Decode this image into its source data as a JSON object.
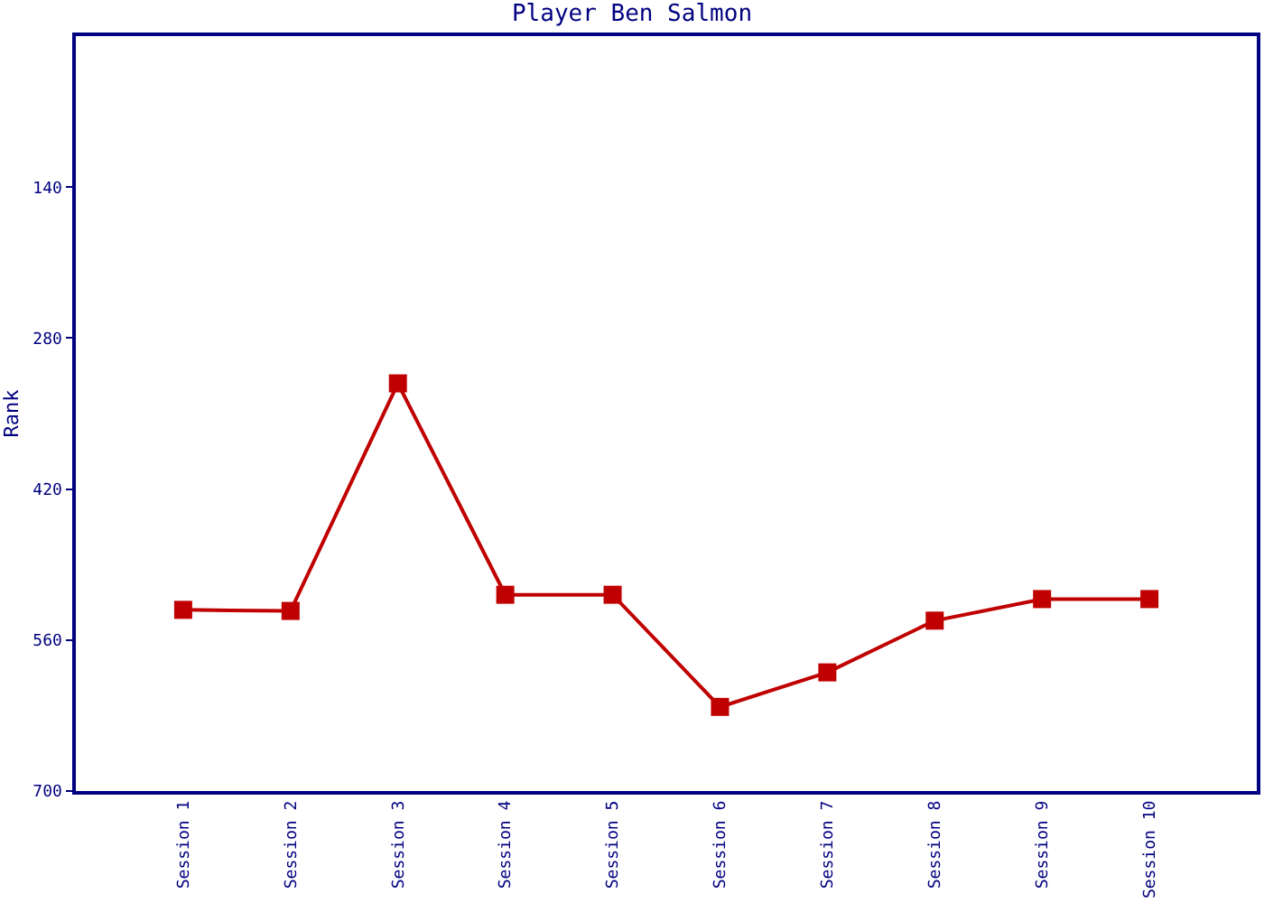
{
  "chart_data": {
    "type": "line",
    "title": "Player Ben Salmon",
    "ylabel": "Rank",
    "categories": [
      "Session 1",
      "Session 2",
      "Session 3",
      "Session 4",
      "Session 5",
      "Session 6",
      "Session 7",
      "Session 8",
      "Session 9",
      "Session 10"
    ],
    "series": [
      {
        "color": "#c00000",
        "values": [
          532,
          533,
          322,
          518,
          518,
          622,
          590,
          542,
          522,
          522
        ]
      }
    ],
    "ylim": [
      700,
      0
    ],
    "yticks": [
      140,
      280,
      420,
      560,
      700
    ],
    "legend": false,
    "marker": "square",
    "line_style": "solid"
  }
}
